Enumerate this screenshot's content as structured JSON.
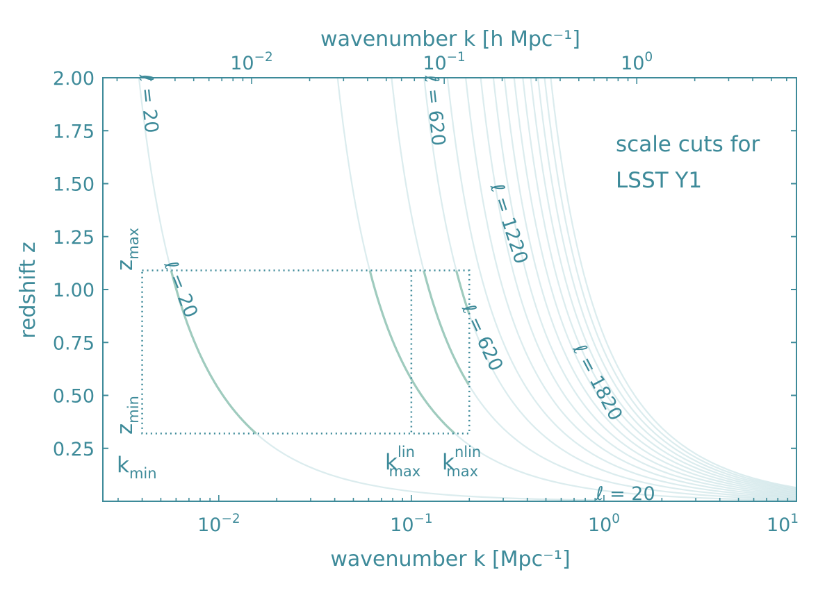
{
  "colors": {
    "axis": "#3d8a99",
    "curve_faint": "#cfe6e8",
    "curve_box": "#9fcbbe",
    "box": "#3d8a99"
  },
  "chart_data": {
    "type": "line",
    "xlabel_bottom": "wavenumber  k  [Mpc⁻¹]",
    "xlabel_top": "wavenumber  k [h Mpc⁻¹]",
    "ylabel": "redshift  z",
    "x_scale": "log",
    "xlim": [
      0.0025,
      10
    ],
    "ylim": [
      0.0,
      2.0
    ],
    "y_ticks": [
      "0.25",
      "0.50",
      "0.75",
      "1.00",
      "1.25",
      "1.50",
      "1.75",
      "2.00"
    ],
    "x_ticks_bottom": [
      {
        "v": 0.01,
        "base": "10",
        "exp": "−2"
      },
      {
        "v": 0.1,
        "base": "10",
        "exp": "−1"
      },
      {
        "v": 1,
        "base": "10",
        "exp": "0"
      },
      {
        "v": 10,
        "base": "10",
        "exp": "1"
      }
    ],
    "x_ticks_top": [
      {
        "v": 0.0148,
        "base": "10",
        "exp": "−2"
      },
      {
        "v": 0.148,
        "base": "10",
        "exp": "−1"
      },
      {
        "v": 1.48,
        "base": "10",
        "exp": "0"
      }
    ],
    "annotation": [
      "scale cuts for",
      "LSST Y1"
    ],
    "ell_values": [
      20,
      220,
      420,
      620,
      820,
      1020,
      1220,
      1420,
      1620,
      1820,
      2020,
      2220,
      2420,
      2620,
      2820
    ],
    "box_ell_values": [
      20,
      220,
      420,
      620
    ],
    "scale_cuts": {
      "k_min": 0.004,
      "k_max_lin": 0.1,
      "k_max_nlin": 0.2,
      "z_min": 0.32,
      "z_max": 1.09
    },
    "curve_labels": [
      {
        "text": "ℓ = 20"
      },
      {
        "text": "ℓ = 620"
      },
      {
        "text": "ℓ = 1220"
      },
      {
        "text": "ℓ = 1820"
      },
      {
        "text": "ℓ = 20"
      },
      {
        "text": "ℓ = 620"
      },
      {
        "text": "ℓ = 20"
      }
    ],
    "cut_labels": {
      "k_min": {
        "main": "k",
        "sub": "min"
      },
      "k_max_lin": {
        "main": "k",
        "sub": "max",
        "sup": "lin"
      },
      "k_max_nlin": {
        "main": "k",
        "sub": "max",
        "sup": "nlin"
      },
      "z_min": {
        "main": "z",
        "sub": "min"
      },
      "z_max": {
        "main": "z",
        "sub": "max"
      }
    }
  }
}
